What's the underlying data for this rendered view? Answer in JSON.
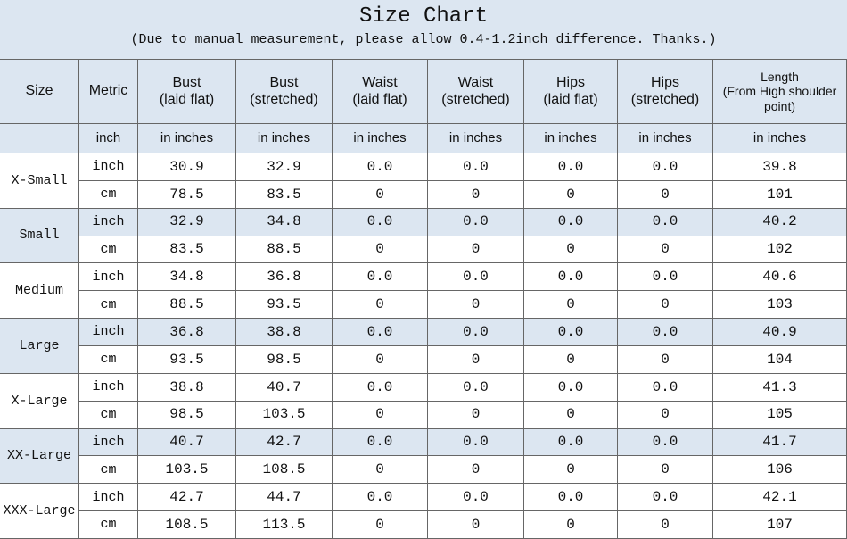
{
  "title": "Size Chart",
  "subtitle": "(Due to manual measurement, please allow 0.4-1.2inch difference. Thanks.)",
  "table": {
    "header": [
      [
        "Size"
      ],
      [
        "Metric"
      ],
      [
        "Bust",
        "(laid flat)"
      ],
      [
        "Bust",
        "(stretched)"
      ],
      [
        "Waist",
        "(laid flat)"
      ],
      [
        "Waist",
        "(stretched)"
      ],
      [
        "Hips",
        "(laid flat)"
      ],
      [
        "Hips",
        "(stretched)"
      ],
      [
        "Length",
        "(From High shoulder",
        "point)"
      ]
    ],
    "units": [
      "inch",
      "in inches",
      "in inches",
      "in inches",
      "in inches",
      "in inches",
      "in inches",
      "in inches"
    ],
    "groups": [
      {
        "size": "X-Small",
        "rows": [
          [
            "inch",
            "30.9",
            "32.9",
            "0.0",
            "0.0",
            "0.0",
            "0.0",
            "39.8"
          ],
          [
            "cm",
            "78.5",
            "83.5",
            "0",
            "0",
            "0",
            "0",
            "101"
          ]
        ]
      },
      {
        "size": "Small",
        "rows": [
          [
            "inch",
            "32.9",
            "34.8",
            "0.0",
            "0.0",
            "0.0",
            "0.0",
            "40.2"
          ],
          [
            "cm",
            "83.5",
            "88.5",
            "0",
            "0",
            "0",
            "0",
            "102"
          ]
        ]
      },
      {
        "size": "Medium",
        "rows": [
          [
            "inch",
            "34.8",
            "36.8",
            "0.0",
            "0.0",
            "0.0",
            "0.0",
            "40.6"
          ],
          [
            "cm",
            "88.5",
            "93.5",
            "0",
            "0",
            "0",
            "0",
            "103"
          ]
        ]
      },
      {
        "size": "Large",
        "rows": [
          [
            "inch",
            "36.8",
            "38.8",
            "0.0",
            "0.0",
            "0.0",
            "0.0",
            "40.9"
          ],
          [
            "cm",
            "93.5",
            "98.5",
            "0",
            "0",
            "0",
            "0",
            "104"
          ]
        ]
      },
      {
        "size": "X-Large",
        "rows": [
          [
            "inch",
            "38.8",
            "40.7",
            "0.0",
            "0.0",
            "0.0",
            "0.0",
            "41.3"
          ],
          [
            "cm",
            "98.5",
            "103.5",
            "0",
            "0",
            "0",
            "0",
            "105"
          ]
        ]
      },
      {
        "size": "XX-Large",
        "rows": [
          [
            "inch",
            "40.7",
            "42.7",
            "0.0",
            "0.0",
            "0.0",
            "0.0",
            "41.7"
          ],
          [
            "cm",
            "103.5",
            "108.5",
            "0",
            "0",
            "0",
            "0",
            "106"
          ]
        ]
      },
      {
        "size": "XXX-Large",
        "rows": [
          [
            "inch",
            "42.7",
            "44.7",
            "0.0",
            "0.0",
            "0.0",
            "0.0",
            "42.1"
          ],
          [
            "cm",
            "108.5",
            "113.5",
            "0",
            "0",
            "0",
            "0",
            "107"
          ]
        ]
      }
    ]
  }
}
